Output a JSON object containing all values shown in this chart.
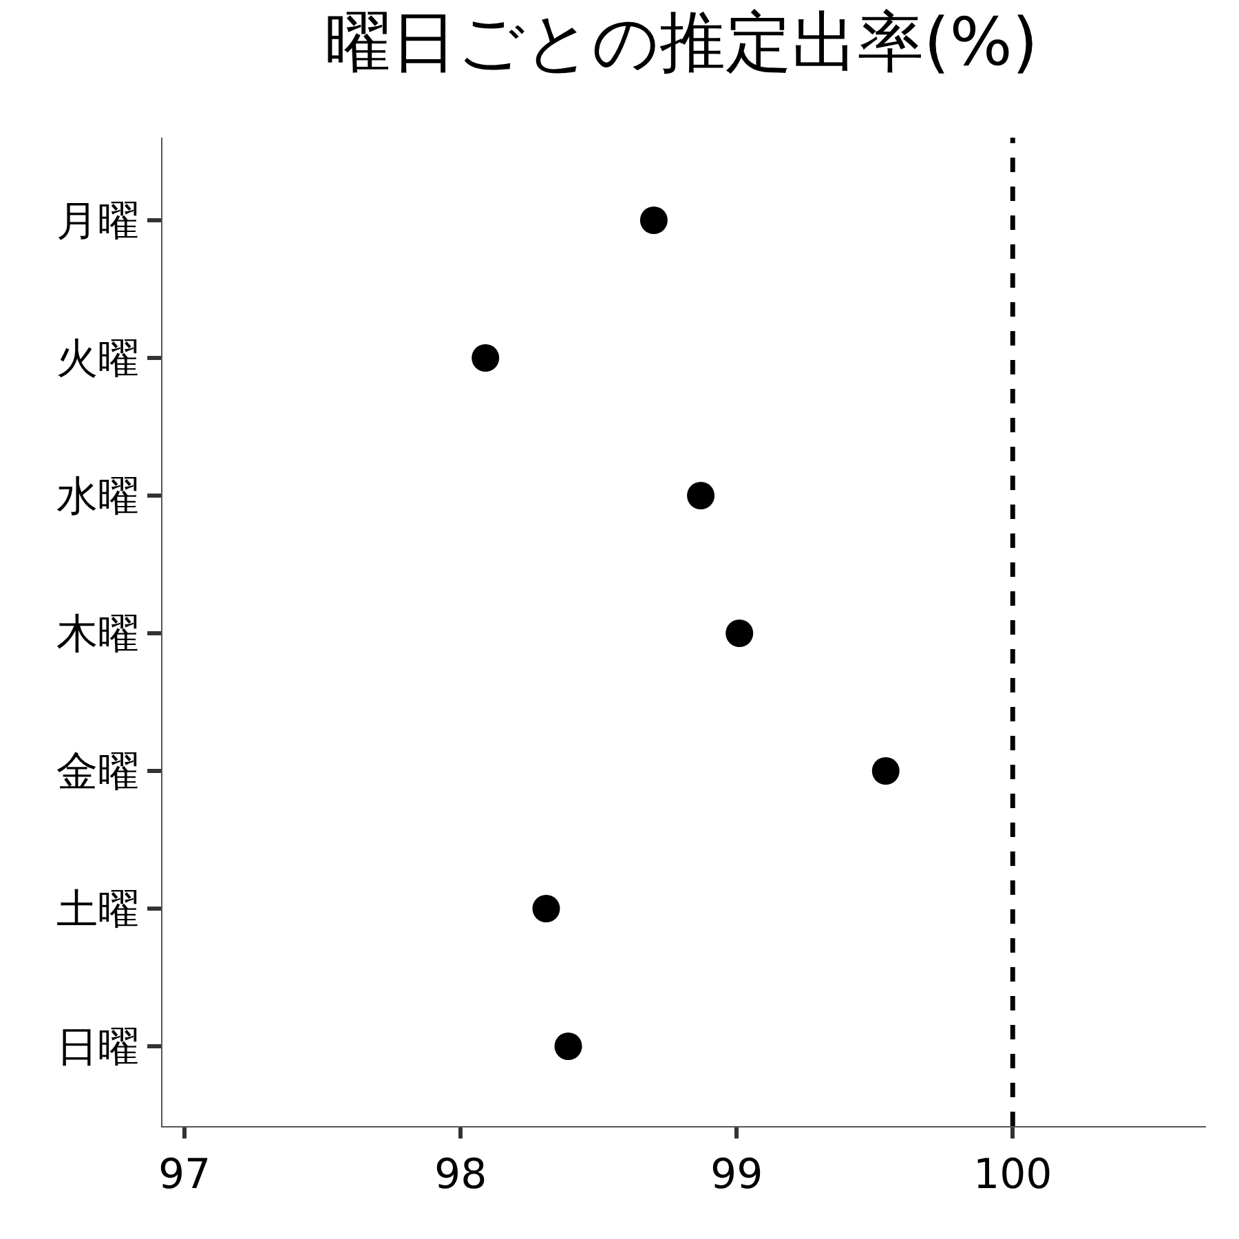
{
  "chart_data": {
    "type": "scatter",
    "title": "曜日ごとの推定出率(%)",
    "orientation": "horizontal",
    "categories": [
      "月曜",
      "火曜",
      "水曜",
      "木曜",
      "金曜",
      "土曜",
      "日曜"
    ],
    "values": [
      98.7,
      98.09,
      98.87,
      99.01,
      99.54,
      98.31,
      98.39
    ],
    "color": "#000000",
    "marker": "circle",
    "xlim": [
      96.92,
      100.7
    ],
    "xticks": [
      97,
      98,
      99,
      100
    ],
    "ref_lines": [
      {
        "axis": "x",
        "value": 100,
        "color": "#000000",
        "line_style": "dashed"
      }
    ]
  }
}
